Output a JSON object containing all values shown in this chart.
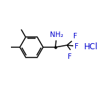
{
  "bg_color": "#ffffff",
  "bond_color": "#000000",
  "blue_color": "#0000cd",
  "label_NH2": "NH₂",
  "label_F": "F",
  "label_HCl": "HCl",
  "figsize": [
    1.52,
    1.52
  ],
  "dpi": 100
}
